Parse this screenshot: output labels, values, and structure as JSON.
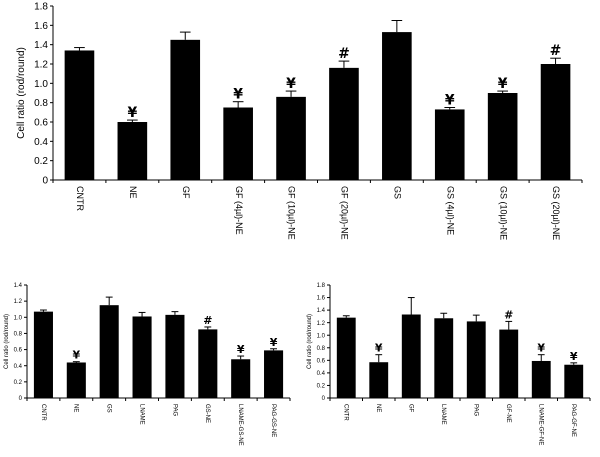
{
  "chart_data": [
    {
      "type": "bar",
      "title": "",
      "xlabel": "",
      "ylabel": "Cell ratio (rod/round)",
      "ylim": [
        0,
        1.8
      ],
      "ytick_step": 0.2,
      "ytick_decimals": 1,
      "grid": false,
      "legend": "none",
      "bar_color": "#000000",
      "categories": [
        "CNTR",
        "NE",
        "GF",
        "GF (4µl)-NE",
        "GF (10µl)-NE",
        "GF (20µl)-NE",
        "GS",
        "GS (4µl)-NE",
        "GS (10µl)-NE",
        "GS (20µl)-NE"
      ],
      "values": [
        1.34,
        0.6,
        1.45,
        0.75,
        0.86,
        1.16,
        1.53,
        0.73,
        0.9,
        1.2
      ],
      "errors": [
        0.03,
        0.02,
        0.08,
        0.06,
        0.06,
        0.07,
        0.12,
        0.02,
        0.02,
        0.06
      ],
      "annotations": [
        "",
        "¥",
        "",
        "¥",
        "¥",
        "#",
        "",
        "¥",
        "¥",
        "#"
      ]
    },
    {
      "type": "bar",
      "title": "",
      "xlabel": "",
      "ylabel": "Cell ratio (rod/round)",
      "ylim": [
        0,
        1.4
      ],
      "ytick_step": 0.2,
      "ytick_decimals": 1,
      "grid": false,
      "legend": "none",
      "bar_color": "#000000",
      "categories": [
        "CNTR",
        "NE",
        "GS",
        "LNAME",
        "PAG",
        "GS-NE",
        "LNAME-GS-NE",
        "PAG-GS-NE"
      ],
      "values": [
        1.07,
        0.44,
        1.15,
        1.01,
        1.03,
        0.85,
        0.48,
        0.59
      ],
      "errors": [
        0.02,
        0.01,
        0.1,
        0.05,
        0.04,
        0.03,
        0.04,
        0.02
      ],
      "annotations": [
        "",
        "¥",
        "",
        "",
        "",
        "#",
        "¥",
        "¥"
      ]
    },
    {
      "type": "bar",
      "title": "",
      "xlabel": "",
      "ylabel": "Cell ratio (rod/round)",
      "ylim": [
        0,
        1.8
      ],
      "ytick_step": 0.2,
      "ytick_decimals": 1,
      "grid": false,
      "legend": "none",
      "bar_color": "#000000",
      "categories": [
        "CNTR",
        "NE",
        "GF",
        "LNAME",
        "PAG",
        "GF-NE",
        "LNAME-GF-NE",
        "PAG-GF-NE"
      ],
      "values": [
        1.28,
        0.57,
        1.33,
        1.27,
        1.22,
        1.09,
        0.59,
        0.53
      ],
      "errors": [
        0.03,
        0.12,
        0.27,
        0.08,
        0.1,
        0.13,
        0.1,
        0.03
      ],
      "annotations": [
        "",
        "¥",
        "",
        "",
        "",
        "#",
        "¥",
        "¥"
      ]
    }
  ]
}
